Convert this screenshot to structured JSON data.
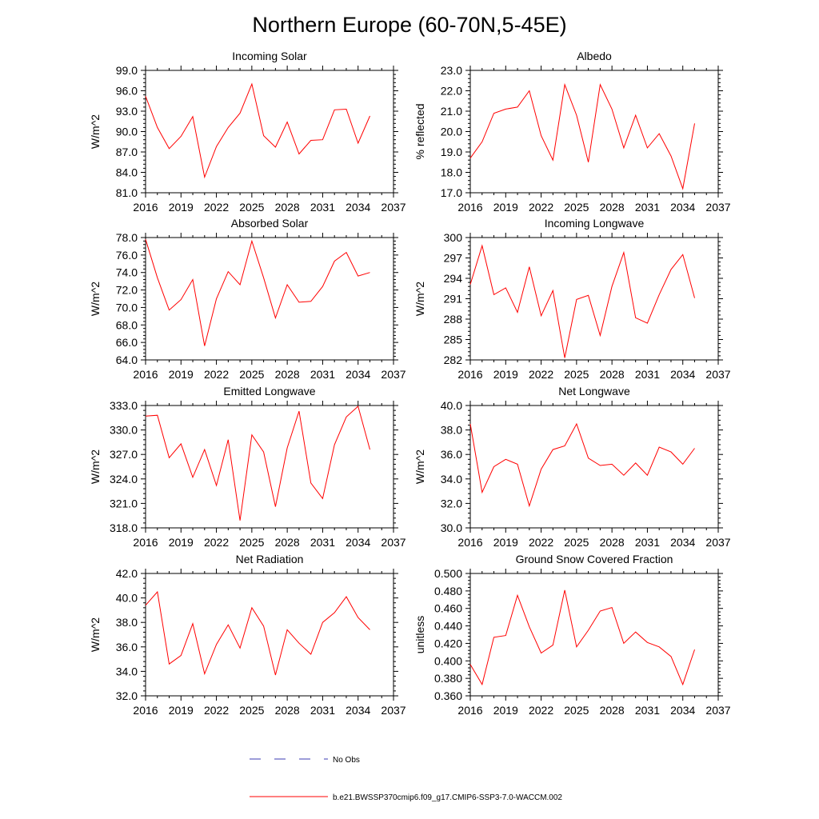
{
  "page": {
    "title": "Northern Europe (60-70N,5-45E)",
    "legend": {
      "obs_label": "No Obs",
      "model_label": "b.e21.BWSSP370cmip6.f09_g17.CMIP6-SSP3-7.0-WACCM.002",
      "obs_color": "#3b3bb3",
      "model_color": "#ff0000"
    }
  },
  "chart_data": [
    {
      "type": "line",
      "title": "Incoming Solar",
      "ylabel": "W/m^2",
      "xlim": [
        2016,
        2037
      ],
      "x_ticks": [
        "2016",
        "2019",
        "2022",
        "2025",
        "2028",
        "2031",
        "2034",
        "2037"
      ],
      "ylim": [
        81.0,
        99.0
      ],
      "y_ticks": [
        "81.0",
        "84.0",
        "87.0",
        "90.0",
        "93.0",
        "96.0",
        "99.0"
      ],
      "x": [
        2016,
        2017,
        2018,
        2019,
        2020,
        2021,
        2022,
        2023,
        2024,
        2025,
        2026,
        2027,
        2028,
        2029,
        2030,
        2031,
        2032,
        2033,
        2034,
        2035
      ],
      "values": [
        95.2,
        90.6,
        87.5,
        89.3,
        92.2,
        83.3,
        87.8,
        90.6,
        92.7,
        97.0,
        89.4,
        87.7,
        91.4,
        86.7,
        88.7,
        88.8,
        93.2,
        93.3,
        88.3,
        92.3
      ],
      "series_name": "b.e21.BWSSP370cmip6.f09_g17.CMIP6-SSP3-7.0-WACCM.002"
    },
    {
      "type": "line",
      "title": "Albedo",
      "ylabel": "% reflected",
      "xlim": [
        2016,
        2037
      ],
      "x_ticks": [
        "2016",
        "2019",
        "2022",
        "2025",
        "2028",
        "2031",
        "2034",
        "2037"
      ],
      "ylim": [
        17.0,
        23.0
      ],
      "y_ticks": [
        "17.0",
        "18.0",
        "19.0",
        "20.0",
        "21.0",
        "22.0",
        "23.0"
      ],
      "x": [
        2016,
        2017,
        2018,
        2019,
        2020,
        2021,
        2022,
        2023,
        2024,
        2025,
        2026,
        2027,
        2028,
        2029,
        2030,
        2031,
        2032,
        2033,
        2034,
        2035
      ],
      "values": [
        18.7,
        19.5,
        20.9,
        21.1,
        21.2,
        22.0,
        19.8,
        18.6,
        22.3,
        20.8,
        18.5,
        22.3,
        21.1,
        19.2,
        20.8,
        19.2,
        19.9,
        18.8,
        17.2,
        20.4
      ],
      "series_name": "b.e21.BWSSP370cmip6.f09_g17.CMIP6-SSP3-7.0-WACCM.002"
    },
    {
      "type": "line",
      "title": "Absorbed Solar",
      "ylabel": "W/m^2",
      "xlim": [
        2016,
        2037
      ],
      "x_ticks": [
        "2016",
        "2019",
        "2022",
        "2025",
        "2028",
        "2031",
        "2034",
        "2037"
      ],
      "ylim": [
        64.0,
        78.0
      ],
      "y_ticks": [
        "64.0",
        "66.0",
        "68.0",
        "70.0",
        "72.0",
        "74.0",
        "76.0",
        "78.0"
      ],
      "x": [
        2016,
        2017,
        2018,
        2019,
        2020,
        2021,
        2022,
        2023,
        2024,
        2025,
        2026,
        2027,
        2028,
        2029,
        2030,
        2031,
        2032,
        2033,
        2034,
        2035
      ],
      "values": [
        77.8,
        73.4,
        69.7,
        70.9,
        73.2,
        65.6,
        71.0,
        74.1,
        72.6,
        77.6,
        73.4,
        68.8,
        72.6,
        70.6,
        70.7,
        72.4,
        75.3,
        76.3,
        73.6,
        74.0
      ],
      "series_name": "b.e21.BWSSP370cmip6.f09_g17.CMIP6-SSP3-7.0-WACCM.002"
    },
    {
      "type": "line",
      "title": "Incoming Longwave",
      "ylabel": "W/m^2",
      "xlim": [
        2016,
        2037
      ],
      "x_ticks": [
        "2016",
        "2019",
        "2022",
        "2025",
        "2028",
        "2031",
        "2034",
        "2037"
      ],
      "ylim": [
        282,
        300
      ],
      "y_ticks": [
        "282",
        "285",
        "288",
        "291",
        "294",
        "297",
        "300"
      ],
      "x": [
        2016,
        2017,
        2018,
        2019,
        2020,
        2021,
        2022,
        2023,
        2024,
        2025,
        2026,
        2027,
        2028,
        2029,
        2030,
        2031,
        2032,
        2033,
        2034,
        2035
      ],
      "values": [
        293.1,
        298.8,
        291.6,
        292.6,
        289.0,
        295.7,
        288.5,
        292.2,
        282.3,
        290.9,
        291.5,
        285.6,
        292.8,
        297.8,
        288.2,
        287.4,
        291.6,
        295.3,
        297.5,
        291.1
      ],
      "series_name": "b.e21.BWSSP370cmip6.f09_g17.CMIP6-SSP3-7.0-WACCM.002"
    },
    {
      "type": "line",
      "title": "Emitted Longwave",
      "ylabel": "W/m^2",
      "xlim": [
        2016,
        2037
      ],
      "x_ticks": [
        "2016",
        "2019",
        "2022",
        "2025",
        "2028",
        "2031",
        "2034",
        "2037"
      ],
      "ylim": [
        318.0,
        333.0
      ],
      "y_ticks": [
        "318.0",
        "321.0",
        "324.0",
        "327.0",
        "330.0",
        "333.0"
      ],
      "x": [
        2016,
        2017,
        2018,
        2019,
        2020,
        2021,
        2022,
        2023,
        2024,
        2025,
        2026,
        2027,
        2028,
        2029,
        2030,
        2031,
        2032,
        2033,
        2034,
        2035
      ],
      "values": [
        331.7,
        331.8,
        326.6,
        328.3,
        324.2,
        327.6,
        323.2,
        328.8,
        318.9,
        329.4,
        327.3,
        320.6,
        327.8,
        332.3,
        323.5,
        321.6,
        328.2,
        331.6,
        332.9,
        327.6
      ],
      "series_name": "b.e21.BWSSP370cmip6.f09_g17.CMIP6-SSP3-7.0-WACCM.002"
    },
    {
      "type": "line",
      "title": "Net Longwave",
      "ylabel": "W/m^2",
      "xlim": [
        2016,
        2037
      ],
      "x_ticks": [
        "2016",
        "2019",
        "2022",
        "2025",
        "2028",
        "2031",
        "2034",
        "2037"
      ],
      "ylim": [
        30.0,
        40.0
      ],
      "y_ticks": [
        "30.0",
        "32.0",
        "34.0",
        "36.0",
        "38.0",
        "40.0"
      ],
      "x": [
        2016,
        2017,
        2018,
        2019,
        2020,
        2021,
        2022,
        2023,
        2024,
        2025,
        2026,
        2027,
        2028,
        2029,
        2030,
        2031,
        2032,
        2033,
        2034,
        2035
      ],
      "values": [
        38.5,
        32.9,
        35.0,
        35.6,
        35.2,
        31.8,
        34.8,
        36.4,
        36.7,
        38.5,
        35.7,
        35.1,
        35.2,
        34.3,
        35.3,
        34.3,
        36.6,
        36.2,
        35.2,
        36.5
      ],
      "series_name": "b.e21.BWSSP370cmip6.f09_g17.CMIP6-SSP3-7.0-WACCM.002"
    },
    {
      "type": "line",
      "title": "Net Radiation",
      "ylabel": "W/m^2",
      "xlim": [
        2016,
        2037
      ],
      "x_ticks": [
        "2016",
        "2019",
        "2022",
        "2025",
        "2028",
        "2031",
        "2034",
        "2037"
      ],
      "ylim": [
        32.0,
        42.0
      ],
      "y_ticks": [
        "32.0",
        "34.0",
        "36.0",
        "38.0",
        "40.0",
        "42.0"
      ],
      "x": [
        2016,
        2017,
        2018,
        2019,
        2020,
        2021,
        2022,
        2023,
        2024,
        2025,
        2026,
        2027,
        2028,
        2029,
        2030,
        2031,
        2032,
        2033,
        2034,
        2035
      ],
      "values": [
        39.4,
        40.5,
        34.6,
        35.3,
        37.9,
        33.8,
        36.2,
        37.8,
        35.9,
        39.2,
        37.7,
        33.7,
        37.4,
        36.3,
        35.4,
        38.0,
        38.8,
        40.1,
        38.4,
        37.4
      ],
      "series_name": "b.e21.BWSSP370cmip6.f09_g17.CMIP6-SSP3-7.0-WACCM.002"
    },
    {
      "type": "line",
      "title": "Ground Snow Covered Fraction",
      "ylabel": "unitless",
      "xlim": [
        2016,
        2037
      ],
      "x_ticks": [
        "2016",
        "2019",
        "2022",
        "2025",
        "2028",
        "2031",
        "2034",
        "2037"
      ],
      "ylim": [
        0.36,
        0.5
      ],
      "y_ticks": [
        "0.360",
        "0.380",
        "0.400",
        "0.420",
        "0.440",
        "0.460",
        "0.480",
        "0.500"
      ],
      "x": [
        2016,
        2017,
        2018,
        2019,
        2020,
        2021,
        2022,
        2023,
        2024,
        2025,
        2026,
        2027,
        2028,
        2029,
        2030,
        2031,
        2032,
        2033,
        2034,
        2035
      ],
      "values": [
        0.396,
        0.373,
        0.427,
        0.429,
        0.475,
        0.439,
        0.409,
        0.418,
        0.481,
        0.416,
        0.435,
        0.457,
        0.461,
        0.42,
        0.433,
        0.421,
        0.416,
        0.405,
        0.373,
        0.413
      ],
      "series_name": "b.e21.BWSSP370cmip6.f09_g17.CMIP6-SSP3-7.0-WACCM.002"
    }
  ]
}
